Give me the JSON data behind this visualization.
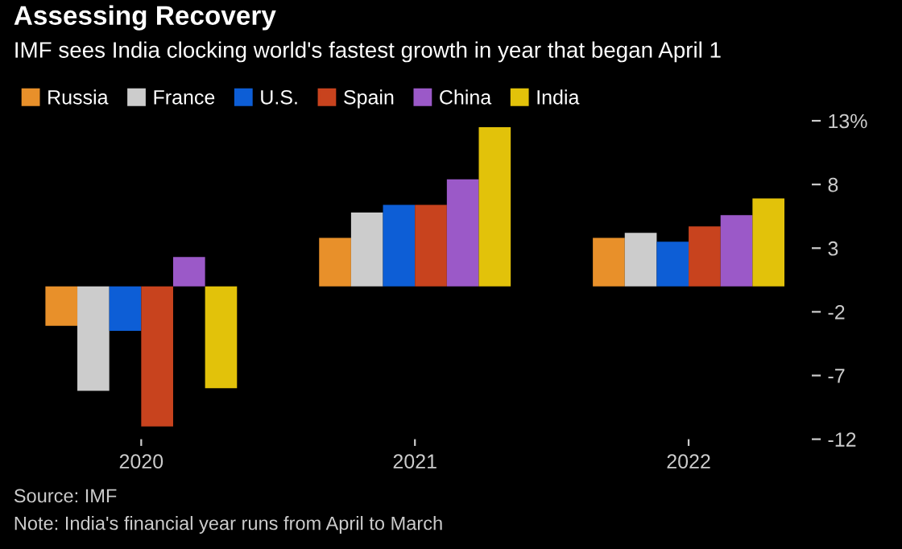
{
  "chart_data": {
    "type": "bar",
    "title": "Assessing Recovery",
    "subtitle": "IMF sees India clocking world's fastest growth in year that began April 1",
    "categories": [
      "2020",
      "2021",
      "2022"
    ],
    "series": [
      {
        "name": "Russia",
        "color": "#e8902a",
        "values": [
          -3.1,
          3.8,
          3.8
        ]
      },
      {
        "name": "France",
        "color": "#cccccc",
        "values": [
          -8.2,
          5.8,
          4.2
        ]
      },
      {
        "name": "U.S.",
        "color": "#0d5ed6",
        "values": [
          -3.5,
          6.4,
          3.5
        ]
      },
      {
        "name": "Spain",
        "color": "#c8431e",
        "values": [
          -11.0,
          6.4,
          4.7
        ]
      },
      {
        "name": "China",
        "color": "#9b59c8",
        "values": [
          2.3,
          8.4,
          5.6
        ]
      },
      {
        "name": "India",
        "color": "#e2c20a",
        "values": [
          -8.0,
          12.5,
          6.9
        ]
      }
    ],
    "ylim": [
      -12,
      13
    ],
    "yticks": [
      {
        "value": 13,
        "label": "13%"
      },
      8,
      3,
      -2,
      -7,
      -12
    ],
    "legend": "top left",
    "grid": false,
    "annotations": [
      "Source: IMF",
      "Note: India's financial year runs from April to March"
    ]
  }
}
